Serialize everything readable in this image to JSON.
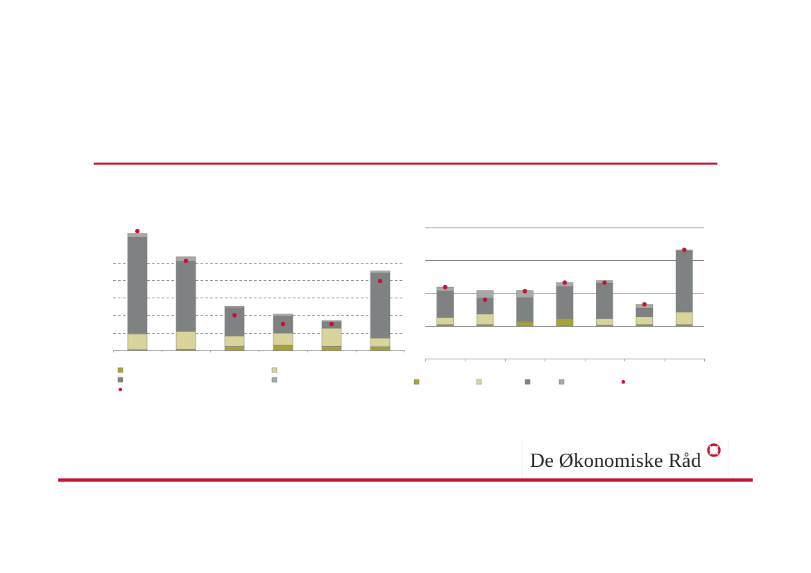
{
  "brand": {
    "name": "De Økonomiske Råd",
    "accent_color": "#c8102e",
    "logo_icon": "lifebuoy-icon"
  },
  "colors": {
    "olive": "#a9a234",
    "light_khaki": "#d8d49a",
    "dark_gray": "#7f8282",
    "light_gray": "#a7a9a9",
    "marker_red": "#c8102e",
    "gridline": "#7f7f7f"
  },
  "chart_data": [
    {
      "type": "bar",
      "stacked": true,
      "categories": [
        "",
        "",
        "",
        "",
        "",
        ""
      ],
      "series": [
        {
          "color": "#a9a234",
          "values": [
            0.4,
            0.6,
            2.2,
            3.0,
            2.2,
            2.0
          ]
        },
        {
          "color": "#d8d49a",
          "values": [
            9.0,
            10.2,
            6.0,
            6.8,
            10.4,
            5.0
          ]
        },
        {
          "color": "#7f8282",
          "values": [
            55.0,
            40.0,
            16.0,
            9.6,
            3.6,
            37.0
          ]
        },
        {
          "color": "#a7a9a9",
          "values": [
            2.2,
            2.6,
            1.0,
            1.2,
            0.8,
            1.2
          ]
        }
      ],
      "markers": {
        "color": "#c8102e",
        "values": [
          68.0,
          51.0,
          20.0,
          15.0,
          15.0,
          39.5
        ]
      },
      "ylim": [
        0,
        70
      ],
      "gridlines": [
        10,
        20,
        30,
        40,
        50
      ],
      "grid": true,
      "grid_style": "dashed",
      "legend": {
        "placement": "bottom",
        "columns": 2,
        "entries": 5
      }
    },
    {
      "type": "bar",
      "stacked": true,
      "categories": [
        "",
        "",
        "",
        "",
        "",
        "",
        ""
      ],
      "series": [
        {
          "color": "#a9a234",
          "values": [
            0.4,
            0.4,
            1.2,
            2.2,
            0.2,
            0.4,
            0.4
          ]
        },
        {
          "color": "#d8d49a",
          "values": [
            2.2,
            3.2,
            0.2,
            0.2,
            2.0,
            2.4,
            3.8
          ]
        },
        {
          "color": "#7f8282",
          "values": [
            8.0,
            4.8,
            7.2,
            9.6,
            10.8,
            2.6,
            18.6
          ]
        },
        {
          "color": "#a7a9a9",
          "values": [
            1.2,
            2.4,
            2.2,
            1.2,
            0.8,
            1.2,
            0.4
          ]
        }
      ],
      "markers": {
        "color": "#c8102e",
        "values": [
          11.8,
          8.0,
          10.6,
          13.2,
          13.2,
          6.6,
          23.2
        ]
      },
      "ylim": [
        -10,
        30
      ],
      "gridlines": [
        0,
        10,
        20,
        30
      ],
      "grid": true,
      "grid_style": "solid",
      "legend": {
        "placement": "bottom",
        "columns": 5,
        "entries": 5
      }
    }
  ]
}
